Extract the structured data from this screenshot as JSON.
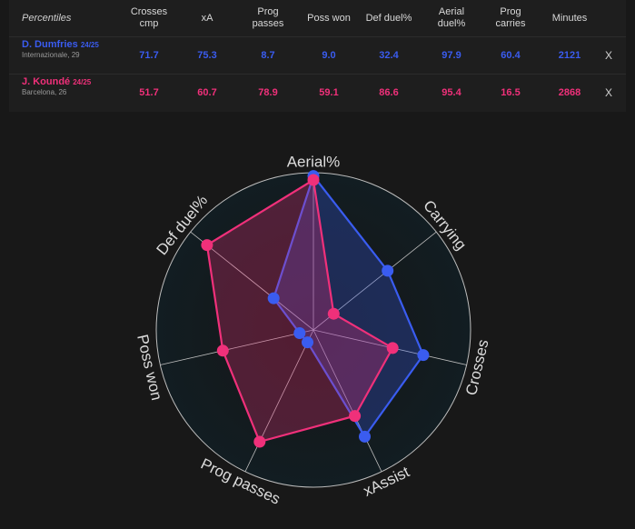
{
  "table": {
    "headers": [
      "Percentiles",
      "Crosses\ncmp",
      "xA",
      "Prog\npasses",
      "Poss won",
      "Def duel%",
      "Aerial\nduel%",
      "Prog\ncarries",
      "Minutes"
    ],
    "players": [
      {
        "name": "D. Dumfries",
        "season": "24/25",
        "team_age": "Internazionale, 29",
        "values": [
          "71.7",
          "75.3",
          "8.7",
          "9.0",
          "32.4",
          "97.9",
          "60.4",
          "2121"
        ],
        "remove_label": "X",
        "color": "#3a5cf0"
      },
      {
        "name": "J. Koundé",
        "season": "24/25",
        "team_age": "Barcelona, 26",
        "values": [
          "51.7",
          "60.7",
          "78.9",
          "59.1",
          "86.6",
          "95.4",
          "16.5",
          "2868"
        ],
        "remove_label": "X",
        "color": "#f0307a"
      }
    ]
  },
  "chart_data": {
    "type": "radar",
    "axes": [
      "Aerial%",
      "Carrying",
      "Crosses",
      "xAssist",
      "Prog passes",
      "Poss won",
      "Def duel%"
    ],
    "range": [
      0,
      100
    ],
    "series": [
      {
        "name": "D. Dumfries",
        "color": "#3a5cf0",
        "values": [
          97.9,
          60.4,
          71.7,
          75.3,
          8.7,
          9.0,
          32.4
        ]
      },
      {
        "name": "J. Koundé",
        "color": "#f0307a",
        "values": [
          95.4,
          16.5,
          51.7,
          60.7,
          78.9,
          59.1,
          86.6
        ]
      }
    ],
    "grid": true,
    "gridline_color": "#bdbdbd",
    "background_color": "#141c22"
  }
}
